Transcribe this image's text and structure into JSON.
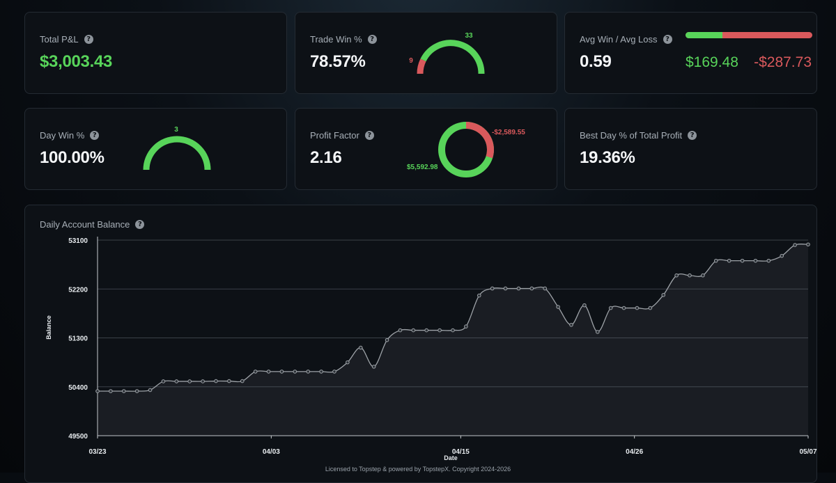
{
  "colors": {
    "green": "#58d45a",
    "red": "#d9595c",
    "card_bg": "#0d1116"
  },
  "cards": {
    "total_pnl": {
      "label": "Total P&L",
      "value": "$3,003.43"
    },
    "trade_win": {
      "label": "Trade Win %",
      "value": "78.57%",
      "wins": "33",
      "losses": "9"
    },
    "avg_win_loss": {
      "label": "Avg Win / Avg Loss",
      "value": "0.59",
      "avg_win": "$169.48",
      "avg_loss": "-$287.73"
    },
    "day_win": {
      "label": "Day Win %",
      "value": "100.00%",
      "wins": "3"
    },
    "profit_factor": {
      "label": "Profit Factor",
      "value": "2.16",
      "gross_profit": "$5,592.98",
      "gross_loss": "-$2,589.55"
    },
    "best_day": {
      "label": "Best Day % of Total Profit",
      "value": "19.36%"
    }
  },
  "help_icon": {
    "glyph": "?",
    "icon": "question-circle-icon"
  },
  "chart_title": "Daily Account Balance",
  "chart_data": {
    "type": "area",
    "title": "Daily Account Balance",
    "xlabel": "Date",
    "ylabel": "Balance",
    "ylim": [
      49500,
      53100
    ],
    "yticks": [
      "53100",
      "52200",
      "51300",
      "50400",
      "49500"
    ],
    "xticks": [
      {
        "label": "03/23",
        "index": 0
      },
      {
        "label": "04/03",
        "index": 11
      },
      {
        "label": "04/15",
        "index": 23
      },
      {
        "label": "04/26",
        "index": 34
      },
      {
        "label": "05/07",
        "index": 45
      }
    ],
    "grid": true,
    "series": [
      {
        "values": [
          50320,
          50320,
          50320,
          50320,
          50340,
          50500,
          50500,
          50500,
          50500,
          50505,
          50505,
          50505,
          50680,
          50680,
          50680,
          50680,
          50680,
          50680,
          50680,
          50850,
          51120,
          50770,
          51260,
          51440,
          51440,
          51440,
          51440,
          51440,
          51510,
          52080,
          52210,
          52210,
          52210,
          52210,
          52210,
          51870,
          51540,
          51900,
          51410,
          51850,
          51850,
          51850,
          51850,
          52090,
          52450,
          52450,
          52450,
          52720,
          52720,
          52720,
          52720,
          52720,
          52810,
          53010,
          53020
        ]
      }
    ]
  },
  "footer": "Licensed to Topstep & powered by TopstepX. Copyright 2024-2026"
}
